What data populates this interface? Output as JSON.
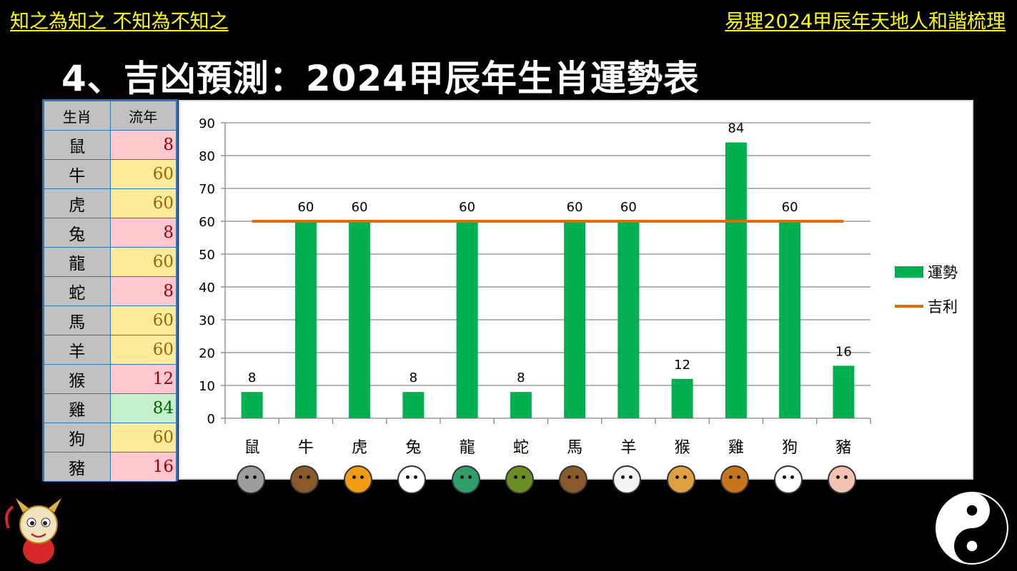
{
  "header": {
    "left": "知之為知之 不知為不知之",
    "right": "易理2024甲辰年天地人和諧梳理",
    "title": "4、吉凶預測：2024甲辰年生肖運勢表"
  },
  "table": {
    "col_animal": "生肖",
    "col_year": "流年",
    "rows": [
      {
        "animal": "鼠",
        "value": "8"
      },
      {
        "animal": "牛",
        "value": "60"
      },
      {
        "animal": "虎",
        "value": "60"
      },
      {
        "animal": "兔",
        "value": "8"
      },
      {
        "animal": "龍",
        "value": "60"
      },
      {
        "animal": "蛇",
        "value": "8"
      },
      {
        "animal": "馬",
        "value": "60"
      },
      {
        "animal": "羊",
        "value": "60"
      },
      {
        "animal": "猴",
        "value": "12"
      },
      {
        "animal": "雞",
        "value": "84"
      },
      {
        "animal": "狗",
        "value": "60"
      },
      {
        "animal": "豬",
        "value": "16"
      }
    ]
  },
  "chart_data": {
    "type": "bar",
    "categories": [
      "鼠",
      "牛",
      "虎",
      "兔",
      "龍",
      "蛇",
      "馬",
      "羊",
      "猴",
      "雞",
      "狗",
      "豬"
    ],
    "series": [
      {
        "name": "運勢",
        "type": "bar",
        "color": "#00b050",
        "values": [
          8,
          60,
          60,
          8,
          60,
          8,
          60,
          60,
          12,
          84,
          60,
          16
        ]
      },
      {
        "name": "吉利",
        "type": "line",
        "color": "#e36c09",
        "values": [
          60,
          60,
          60,
          60,
          60,
          60,
          60,
          60,
          60,
          60,
          60,
          60
        ]
      }
    ],
    "data_labels": [
      "8",
      "60",
      "60",
      "8",
      "60",
      "8",
      "60",
      "60",
      "12",
      "84",
      "60",
      "16"
    ],
    "ylim": [
      0,
      90
    ],
    "yticks": [
      0,
      10,
      20,
      30,
      40,
      50,
      60,
      70,
      80,
      90
    ],
    "grid": true,
    "legend": "right"
  },
  "colors": {
    "header_text": "#ffff00",
    "title_text": "#ffffff",
    "bar": "#00b050",
    "line": "#e36c09",
    "table_border": "#2e75b6"
  },
  "icons": [
    "rat-icon",
    "ox-icon",
    "tiger-icon",
    "rabbit-icon",
    "dragon-icon",
    "snake-icon",
    "horse-icon",
    "goat-icon",
    "monkey-icon",
    "rooster-icon",
    "dog-icon",
    "pig-icon",
    "dragon-mascot-icon",
    "yin-yang-icon"
  ],
  "critter_colors": [
    "#9e9e9e",
    "#8b5a2b",
    "#f39c12",
    "#ffffff",
    "#2e9e6b",
    "#6b8e23",
    "#8b5a2b",
    "#f5f5f5",
    "#e0a040",
    "#c8741a",
    "#ffffff",
    "#f4c2b0"
  ]
}
